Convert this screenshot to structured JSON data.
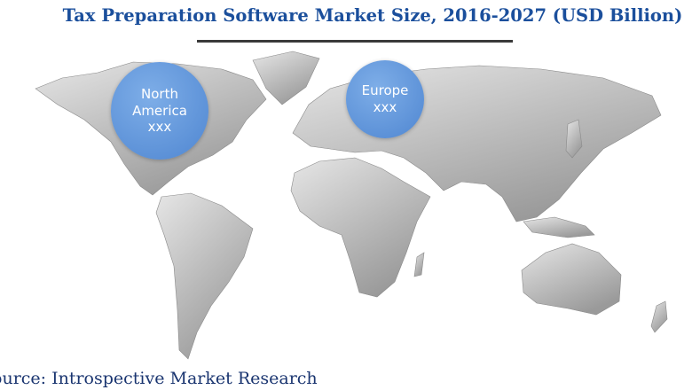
{
  "header": {
    "title": "Tax Preparation Software Market Size, 2016-2027 (USD Billion)"
  },
  "regions": [
    {
      "name": "North America",
      "value": "xxx"
    },
    {
      "name": "Europe",
      "value": "xxx"
    }
  ],
  "footer": {
    "source": "Source: Introspective Market Research"
  }
}
